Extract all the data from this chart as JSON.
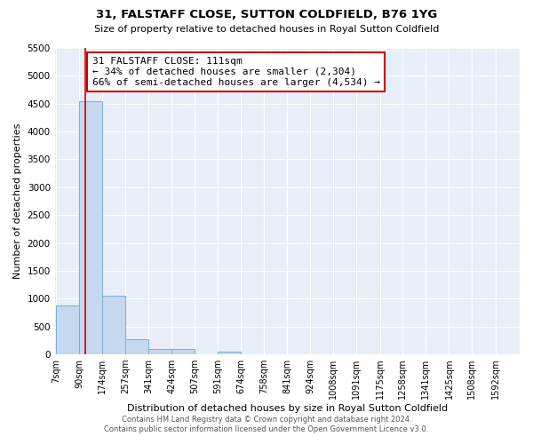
{
  "title1": "31, FALSTAFF CLOSE, SUTTON COLDFIELD, B76 1YG",
  "title2": "Size of property relative to detached houses in Royal Sutton Coldfield",
  "xlabel": "Distribution of detached houses by size in Royal Sutton Coldfield",
  "ylabel": "Number of detached properties",
  "footer1": "Contains HM Land Registry data © Crown copyright and database right 2024.",
  "footer2": "Contains public sector information licensed under the Open Government Licence v3.0.",
  "annotation_title": "31 FALSTAFF CLOSE: 111sqm",
  "annotation_line1": "← 34% of detached houses are smaller (2,304)",
  "annotation_line2": "66% of semi-detached houses are larger (4,534) →",
  "property_size": 111,
  "bar_edges": [
    7,
    90,
    174,
    257,
    341,
    424,
    507,
    591,
    674,
    758,
    841,
    924,
    1008,
    1091,
    1175,
    1258,
    1341,
    1425,
    1508,
    1592,
    1675
  ],
  "bar_heights": [
    870,
    4550,
    1060,
    275,
    90,
    90,
    0,
    55,
    0,
    0,
    0,
    0,
    0,
    0,
    0,
    0,
    0,
    0,
    0,
    0
  ],
  "bar_color": "#c5d8f0",
  "bar_edge_color": "#7aadd4",
  "vline_color": "#cc0000",
  "vline_x": 111,
  "annotation_box_color": "#cc0000",
  "background_color": "#e8eef8",
  "ylim": [
    0,
    5500
  ],
  "yticks": [
    0,
    500,
    1000,
    1500,
    2000,
    2500,
    3000,
    3500,
    4000,
    4500,
    5000,
    5500
  ],
  "fig_width": 6.0,
  "fig_height": 5.0,
  "dpi": 100
}
